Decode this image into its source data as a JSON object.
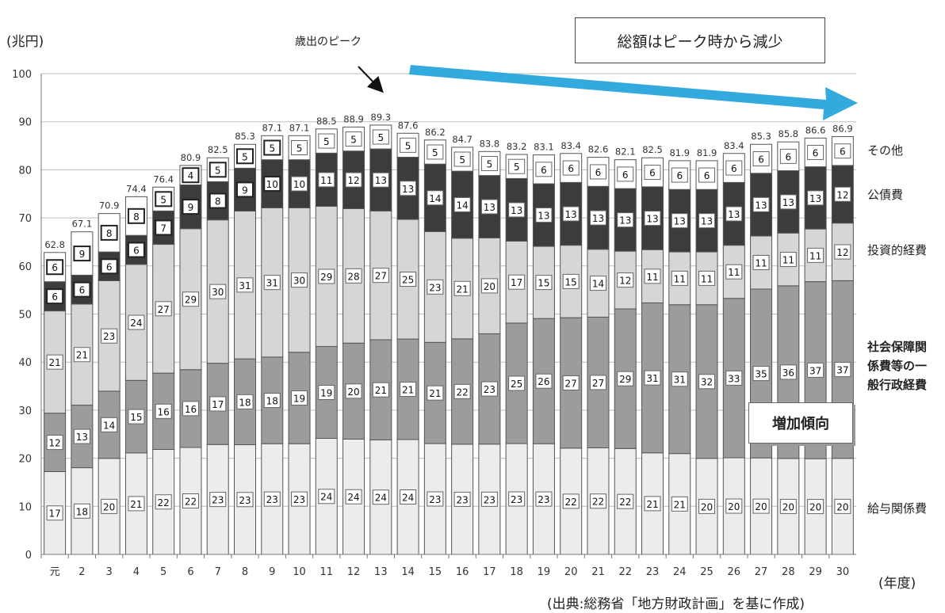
{
  "chart_data": {
    "type": "bar",
    "stacked": true,
    "title": "",
    "ylabel": "(兆円)",
    "xlabel": "(年度)",
    "ylim": [
      0,
      100
    ],
    "yticks": [
      0,
      10,
      20,
      30,
      40,
      50,
      60,
      70,
      80,
      90,
      100
    ],
    "grid": true,
    "categories": [
      "元",
      "2",
      "3",
      "4",
      "5",
      "6",
      "7",
      "8",
      "9",
      "10",
      "11",
      "12",
      "13",
      "14",
      "15",
      "16",
      "17",
      "18",
      "19",
      "20",
      "21",
      "22",
      "23",
      "24",
      "25",
      "26",
      "27",
      "28",
      "29",
      "30"
    ],
    "totals": [
      "62.8",
      "67.1",
      "70.9",
      "74.4",
      "76.4",
      "80.9",
      "82.5",
      "85.3",
      "87.1",
      "87.1",
      "88.5",
      "88.9",
      "89.3",
      "87.6",
      "86.2",
      "84.7",
      "83.8",
      "83.2",
      "83.1",
      "83.4",
      "82.6",
      "82.1",
      "82.5",
      "81.9",
      "81.9",
      "83.4",
      "85.3",
      "85.8",
      "86.6",
      "86.9"
    ],
    "series": [
      {
        "name": "給与関係費",
        "color": "#ececec",
        "values": [
          17,
          18,
          20,
          21,
          22,
          22,
          23,
          23,
          23,
          23,
          24,
          24,
          24,
          24,
          23,
          23,
          23,
          23,
          23,
          22,
          22,
          22,
          21,
          21,
          20,
          20,
          20,
          20,
          20,
          20
        ]
      },
      {
        "name": "社会保障関係費等の一般行政経費",
        "color": "#9c9c9c",
        "values": [
          12,
          13,
          14,
          15,
          16,
          16,
          17,
          18,
          18,
          19,
          19,
          20,
          21,
          21,
          21,
          22,
          23,
          25,
          26,
          27,
          27,
          29,
          31,
          31,
          32,
          33,
          35,
          36,
          37,
          37
        ]
      },
      {
        "name": "投資的経費",
        "color": "#d6d6d6",
        "values": [
          21,
          21,
          23,
          24,
          27,
          29,
          30,
          31,
          31,
          30,
          29,
          28,
          27,
          25,
          23,
          21,
          20,
          17,
          15,
          15,
          14,
          12,
          11,
          11,
          11,
          11,
          11,
          11,
          11,
          12
        ]
      },
      {
        "name": "公債費",
        "color": "#3c3c3c",
        "values": [
          6,
          6,
          6,
          6,
          7,
          9,
          8,
          9,
          10,
          10,
          11,
          12,
          13,
          13,
          14,
          14,
          13,
          13,
          13,
          13,
          13,
          13,
          13,
          13,
          13,
          13,
          13,
          13,
          13,
          12
        ]
      },
      {
        "name": "その他",
        "color": "#ffffff",
        "values": [
          6,
          9,
          8,
          8,
          5,
          4,
          5,
          5,
          5,
          5,
          5,
          5,
          5,
          5,
          5,
          5,
          5,
          5,
          6,
          6,
          6,
          6,
          6,
          6,
          6,
          6,
          6,
          6,
          6,
          6
        ]
      }
    ],
    "annotations": {
      "peak": "歳出のピーク",
      "headline": "総額はピーク時から減少",
      "increase": "増加傾向"
    },
    "source": "(出典:総務省「地方財政計画」を基に作成)"
  },
  "labels": {
    "other": "その他",
    "debt": "公債費",
    "invest": "投資的経費",
    "social_1": "社会保障関",
    "social_2": "係費等の一",
    "social_3": "般行政経費",
    "salary": "給与関係費"
  }
}
